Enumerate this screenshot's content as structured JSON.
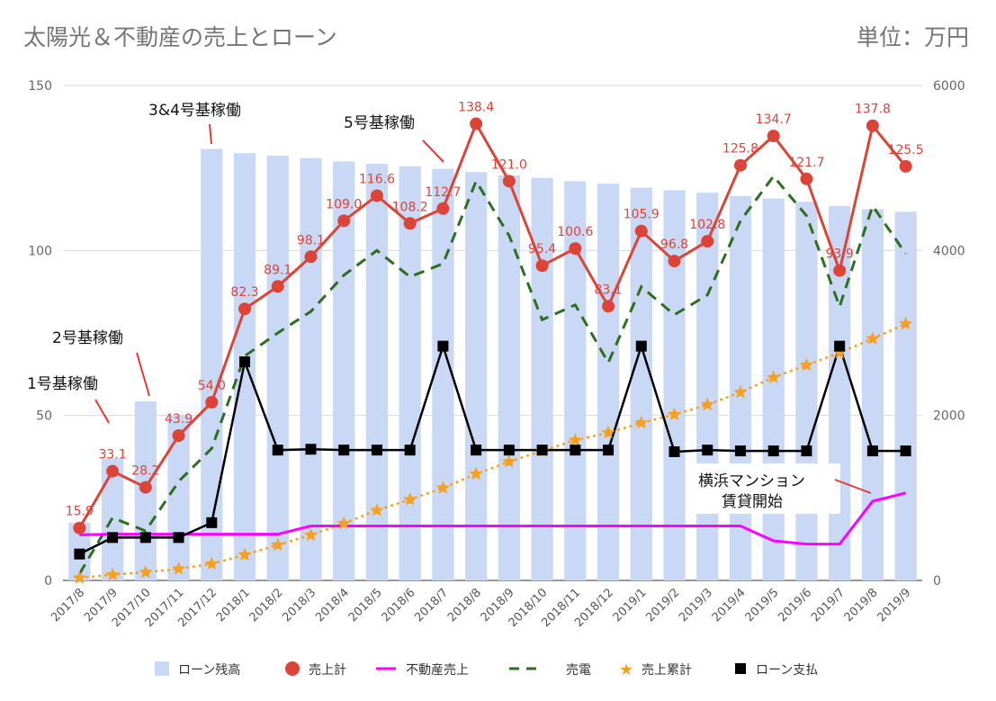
{
  "page": {
    "title": "太陽光＆不動産の売上とローン",
    "unit": "単位：万円"
  },
  "colors": {
    "bar": "#c8d8f5",
    "sales": "#db4437",
    "realestate": "#ff00ff",
    "power": "#2e6e1f",
    "cumulative": "#f5a020",
    "loan": "#000000"
  },
  "chart_data": {
    "type": "bar",
    "categories": [
      "2017/8",
      "2017/9",
      "2017/10",
      "2017/11",
      "2017/12",
      "2018/1",
      "2018/2",
      "2018/3",
      "2018/4",
      "2018/5",
      "2018/6",
      "2018/7",
      "2018/8",
      "2018/9",
      "2018/10",
      "2018/11",
      "2018/12",
      "2019/1",
      "2019/2",
      "2019/3",
      "2019/4",
      "2019/5",
      "2019/6",
      "2019/7",
      "2019/8",
      "2019/9"
    ],
    "left_axis": {
      "min": 0,
      "max": 150,
      "ticks": [
        0,
        50,
        100,
        150
      ]
    },
    "right_axis": {
      "min": 0,
      "max": 6000,
      "ticks": [
        0,
        2000,
        4000,
        6000
      ]
    },
    "series": [
      {
        "name": "ローン残高",
        "type": "bar",
        "axis": "right",
        "values": [
          700,
          1480,
          2170,
          2000,
          5230,
          5180,
          5150,
          5120,
          5080,
          5050,
          5020,
          4990,
          4950,
          4910,
          4880,
          4840,
          4810,
          4760,
          4730,
          4700,
          4660,
          4630,
          4590,
          4540,
          4500,
          4470
        ]
      },
      {
        "name": "売上計",
        "type": "line",
        "axis": "left",
        "values": [
          15.9,
          33.1,
          28.2,
          43.9,
          54.0,
          82.3,
          89.1,
          98.1,
          109.0,
          116.6,
          108.2,
          112.7,
          138.4,
          121.0,
          95.4,
          100.6,
          83.1,
          105.9,
          96.8,
          102.8,
          125.8,
          134.7,
          121.7,
          93.9,
          137.8,
          125.5
        ]
      },
      {
        "name": "不動産売上",
        "type": "line",
        "axis": "left",
        "values": [
          13.8,
          14,
          14,
          14,
          14,
          14,
          14,
          16.5,
          16.5,
          16.5,
          16.5,
          16.5,
          16.5,
          16.5,
          16.5,
          16.5,
          16.5,
          16.5,
          16.5,
          16.5,
          16.5,
          12,
          11,
          11,
          24,
          26.5
        ]
      },
      {
        "name": "売電",
        "type": "line",
        "axis": "left",
        "values": [
          2,
          19,
          15,
          30,
          40,
          68,
          75,
          81.5,
          92.5,
          100,
          92,
          96,
          121,
          104.5,
          79,
          83.5,
          66,
          89,
          80.5,
          86.5,
          109,
          122.5,
          110.5,
          83,
          113.5,
          99
        ]
      },
      {
        "name": "売上累計",
        "type": "line",
        "axis": "right",
        "values": [
          30,
          70,
          100,
          140,
          200,
          310,
          430,
          550,
          690,
          850,
          980,
          1120,
          1290,
          1440,
          1570,
          1700,
          1790,
          1910,
          2010,
          2130,
          2280,
          2460,
          2610,
          2760,
          2930,
          3110
        ]
      },
      {
        "name": "ローン支払",
        "type": "line",
        "axis": "right",
        "values": [
          320,
          520,
          520,
          520,
          700,
          2650,
          1580,
          1590,
          1580,
          1580,
          1580,
          2840,
          1580,
          1580,
          1580,
          1580,
          1580,
          2840,
          1560,
          1580,
          1570,
          1570,
          1570,
          2840,
          1570,
          1570
        ]
      }
    ],
    "annotations": [
      "1号基稼働",
      "2号基稼働",
      "3&4号基稼働",
      "5号基稼働",
      "横浜マンション",
      "賃貸開始"
    ]
  }
}
